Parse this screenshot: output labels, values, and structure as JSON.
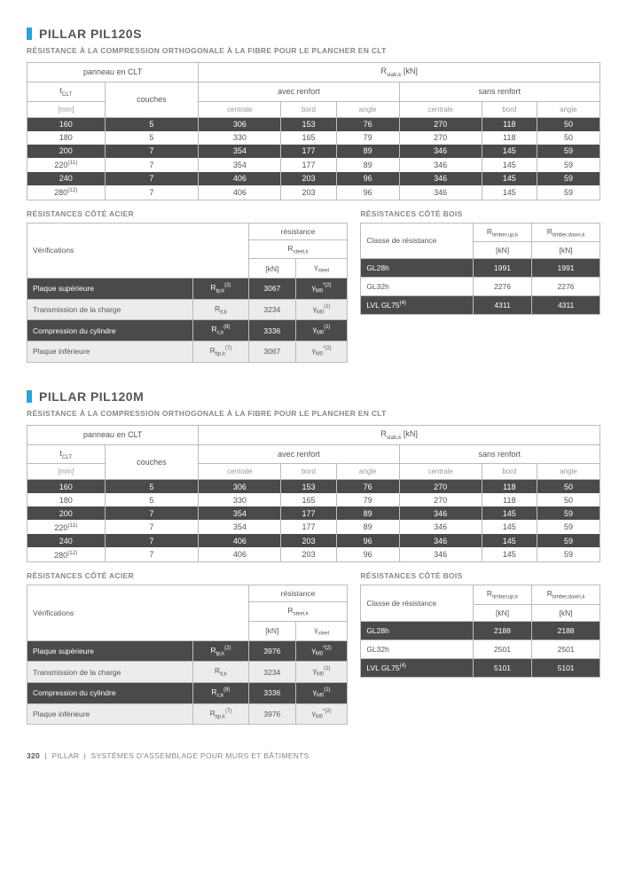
{
  "sections": [
    {
      "title": "PILLAR PIL120S",
      "subtitle": "RÉSISTANCE À LA COMPRESSION ORTHOGONALE À LA FIBRE POUR LE PLANCHER EN CLT",
      "clt": {
        "group_left": "panneau en CLT",
        "group_right": "R",
        "group_right_sub": "slab,k",
        "group_right_unit": "[kN]",
        "col_t": "t",
        "col_t_sub": "CLT",
        "col_t_unit": "[mm]",
        "col_layers": "couches",
        "col_avec": "avec renfort",
        "col_sans": "sans renfort",
        "sub_cols": [
          "centrale",
          "bord",
          "angle"
        ],
        "rows": [
          {
            "t": "160",
            "sup": "",
            "layers": "5",
            "v": [
              "306",
              "153",
              "76",
              "270",
              "118",
              "50"
            ]
          },
          {
            "t": "180",
            "sup": "",
            "layers": "5",
            "v": [
              "330",
              "165",
              "79",
              "270",
              "118",
              "50"
            ]
          },
          {
            "t": "200",
            "sup": "",
            "layers": "7",
            "v": [
              "354",
              "177",
              "89",
              "346",
              "145",
              "59"
            ]
          },
          {
            "t": "220",
            "sup": "(11)",
            "layers": "7",
            "v": [
              "354",
              "177",
              "89",
              "346",
              "145",
              "59"
            ]
          },
          {
            "t": "240",
            "sup": "",
            "layers": "7",
            "v": [
              "406",
              "203",
              "96",
              "346",
              "145",
              "59"
            ]
          },
          {
            "t": "280",
            "sup": "(12)",
            "layers": "7",
            "v": [
              "406",
              "203",
              "96",
              "346",
              "145",
              "59"
            ]
          }
        ]
      },
      "steel_title": "RÉSISTANCES CÔTÉ ACIER",
      "steel": {
        "h_verif": "Vérifications",
        "h_res": "résistance",
        "h_r": "R",
        "h_r_sub": "steel,k",
        "h_kn": "[kN]",
        "h_gamma": "γ",
        "h_gamma_sub": "steel",
        "rows": [
          {
            "label": "Plaque supérieure",
            "sym": "R",
            "symsub": "tp,k",
            "symsup": "(2)",
            "val": "3067",
            "g": "γ",
            "gsub": "M0",
            "gsup": "*(2)"
          },
          {
            "label": "Transmission de la charge",
            "sym": "R",
            "symsub": "lt,k",
            "symsup": "",
            "val": "3234",
            "g": "γ",
            "gsub": "M0",
            "gsup": "(1)"
          },
          {
            "label": "Compression du cylindre",
            "sym": "R",
            "symsub": "c,k",
            "symsup": "(8)",
            "val": "3336",
            "g": "γ",
            "gsub": "M0",
            "gsup": "(1)"
          },
          {
            "label": "Plaque inférieure",
            "sym": "R",
            "symsub": "bp,k",
            "symsup": "(7)",
            "val": "3067",
            "g": "γ",
            "gsub": "M0",
            "gsup": "*(2)"
          }
        ]
      },
      "wood_title": "RÉSISTANCES CÔTÉ BOIS",
      "wood": {
        "h_class": "Classe de résistance",
        "h_up": "R",
        "h_up_sub": "timber,up,k",
        "h_down": "R",
        "h_down_sub": "timber,down,k",
        "h_kn": "[kN]",
        "rows": [
          {
            "label": "GL28h",
            "sup": "",
            "up": "1991",
            "down": "1991"
          },
          {
            "label": "GL32h",
            "sup": "",
            "up": "2276",
            "down": "2276"
          },
          {
            "label": "LVL GL75",
            "sup": "(4)",
            "up": "4311",
            "down": "4311"
          }
        ]
      }
    },
    {
      "title": "PILLAR PIL120M",
      "subtitle": "RÉSISTANCE À LA COMPRESSION ORTHOGONALE À LA FIBRE POUR LE PLANCHER EN CLT",
      "clt": {
        "group_left": "panneau en CLT",
        "group_right": "R",
        "group_right_sub": "slab,k",
        "group_right_unit": "[kN]",
        "col_t": "t",
        "col_t_sub": "CLT",
        "col_t_unit": "[mm]",
        "col_layers": "couches",
        "col_avec": "avec renfort",
        "col_sans": "sans renfort",
        "sub_cols": [
          "centrale",
          "bord",
          "angle"
        ],
        "rows": [
          {
            "t": "160",
            "sup": "",
            "layers": "5",
            "v": [
              "306",
              "153",
              "76",
              "270",
              "118",
              "50"
            ]
          },
          {
            "t": "180",
            "sup": "",
            "layers": "5",
            "v": [
              "330",
              "165",
              "79",
              "270",
              "118",
              "50"
            ]
          },
          {
            "t": "200",
            "sup": "",
            "layers": "7",
            "v": [
              "354",
              "177",
              "89",
              "346",
              "145",
              "59"
            ]
          },
          {
            "t": "220",
            "sup": "(11)",
            "layers": "7",
            "v": [
              "354",
              "177",
              "89",
              "346",
              "145",
              "59"
            ]
          },
          {
            "t": "240",
            "sup": "",
            "layers": "7",
            "v": [
              "406",
              "203",
              "96",
              "346",
              "145",
              "59"
            ]
          },
          {
            "t": "280",
            "sup": "(12)",
            "layers": "7",
            "v": [
              "406",
              "203",
              "96",
              "346",
              "145",
              "59"
            ]
          }
        ]
      },
      "steel_title": "RÉSISTANCES CÔTÉ ACIER",
      "steel": {
        "h_verif": "Vérifications",
        "h_res": "résistance",
        "h_r": "R",
        "h_r_sub": "steel,k",
        "h_kn": "[kN]",
        "h_gamma": "γ",
        "h_gamma_sub": "steel",
        "rows": [
          {
            "label": "Plaque supérieure",
            "sym": "R",
            "symsub": "tp,k",
            "symsup": "(2)",
            "val": "3976",
            "g": "γ",
            "gsub": "M0",
            "gsup": "*(2)"
          },
          {
            "label": "Transmission de la charge",
            "sym": "R",
            "symsub": "lt,k",
            "symsup": "",
            "val": "3234",
            "g": "γ",
            "gsub": "M0",
            "gsup": "(1)"
          },
          {
            "label": "Compression du cylindre",
            "sym": "R",
            "symsub": "c,k",
            "symsup": "(8)",
            "val": "3336",
            "g": "γ",
            "gsub": "M0",
            "gsup": "(1)"
          },
          {
            "label": "Plaque inférieure",
            "sym": "R",
            "symsub": "bp,k",
            "symsup": "(7)",
            "val": "3976",
            "g": "γ",
            "gsub": "M0",
            "gsup": "*(2)"
          }
        ]
      },
      "wood_title": "RÉSISTANCES CÔTÉ BOIS",
      "wood": {
        "h_class": "Classe de résistance",
        "h_up": "R",
        "h_up_sub": "timber,up,k",
        "h_down": "R",
        "h_down_sub": "timber,down,k",
        "h_kn": "[kN]",
        "rows": [
          {
            "label": "GL28h",
            "sup": "",
            "up": "2188",
            "down": "2188"
          },
          {
            "label": "GL32h",
            "sup": "",
            "up": "2501",
            "down": "2501"
          },
          {
            "label": "LVL GL75",
            "sup": "(4)",
            "up": "5101",
            "down": "5101"
          }
        ]
      }
    }
  ],
  "footer": {
    "page": "320",
    "cat": "PILLAR",
    "text": "SYSTÈMES D'ASSEMBLAGE POUR MURS ET BÂTIMENTS"
  }
}
